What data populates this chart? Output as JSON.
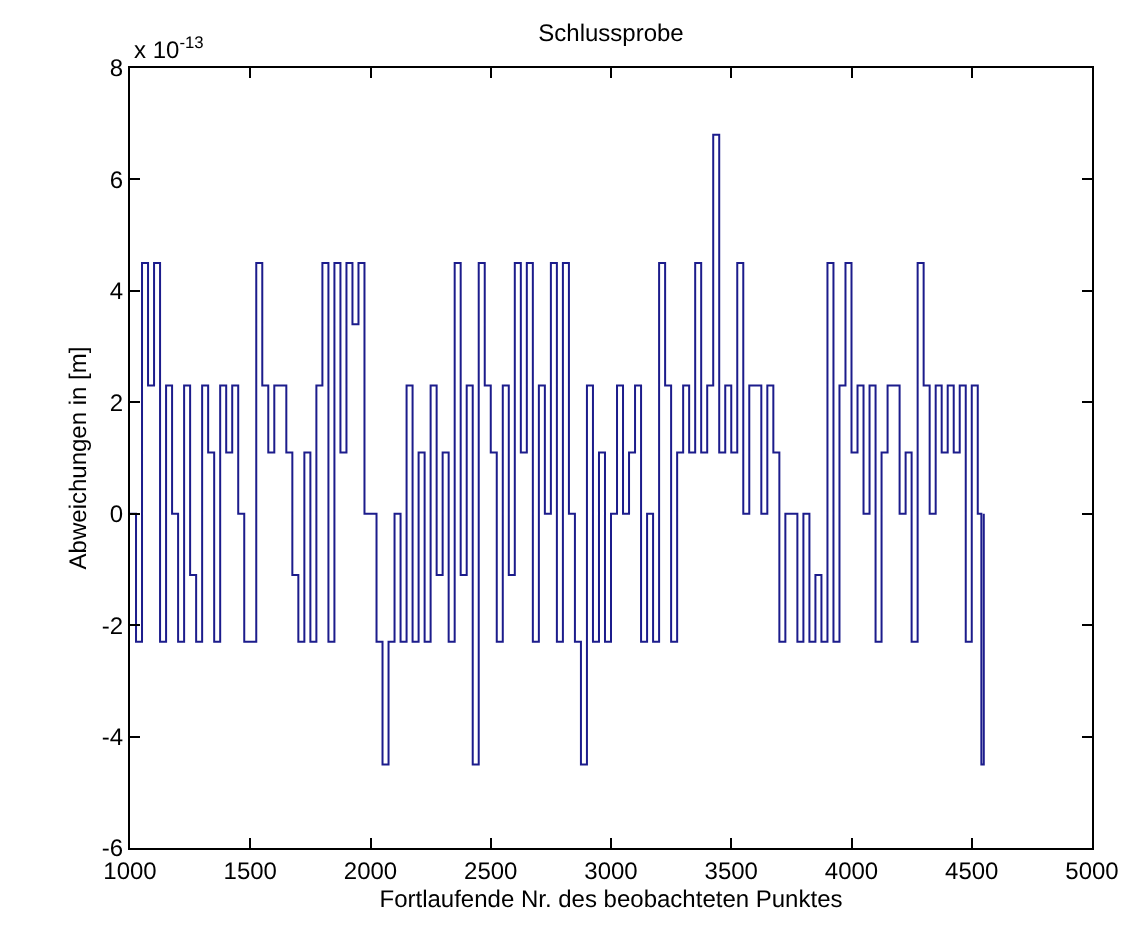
{
  "chart_data": {
    "type": "step",
    "title": "Schlussprobe",
    "xlabel": "Fortlaufende Nr. des beobachteten Punktes",
    "ylabel": "Abweichungen in [m]",
    "annotations": [
      "x 10$^{-13}$"
    ],
    "xlim": [
      1000,
      5000
    ],
    "xticks": [
      1000,
      1500,
      2000,
      2500,
      3000,
      3500,
      4000,
      4500,
      5000
    ],
    "ylim": [
      -6,
      8
    ],
    "yticks": [
      -6,
      -4,
      -2,
      0,
      2,
      4,
      6,
      8
    ],
    "series": [
      {
        "color": "#1c1c8c",
        "x": [
          1000,
          1025,
          1050,
          1075,
          1100,
          1125,
          1150,
          1175,
          1200,
          1225,
          1250,
          1275,
          1300,
          1325,
          1350,
          1375,
          1400,
          1425,
          1450,
          1475,
          1500,
          1525,
          1550,
          1575,
          1600,
          1625,
          1650,
          1675,
          1700,
          1725,
          1750,
          1775,
          1800,
          1825,
          1850,
          1875,
          1900,
          1925,
          1950,
          1975,
          2000,
          2025,
          2050,
          2075,
          2100,
          2125,
          2150,
          2175,
          2200,
          2225,
          2250,
          2275,
          2300,
          2325,
          2350,
          2375,
          2400,
          2425,
          2450,
          2475,
          2500,
          2525,
          2550,
          2575,
          2600,
          2625,
          2650,
          2675,
          2700,
          2725,
          2750,
          2775,
          2800,
          2825,
          2850,
          2875,
          2900,
          2925,
          2950,
          2975,
          3000,
          3025,
          3050,
          3075,
          3100,
          3125,
          3150,
          3175,
          3200,
          3225,
          3250,
          3275,
          3300,
          3325,
          3350,
          3375,
          3400,
          3425,
          3450,
          3475,
          3500,
          3525,
          3550,
          3575,
          3600,
          3625,
          3650,
          3675,
          3700,
          3725,
          3750,
          3775,
          3800,
          3825,
          3850,
          3875,
          3900,
          3925,
          3950,
          3975,
          4000,
          4025,
          4050,
          4075,
          4100,
          4125,
          4150,
          4175,
          4200,
          4225,
          4250,
          4275,
          4300,
          4325,
          4350,
          4375,
          4400,
          4425,
          4450,
          4475,
          4500,
          4525,
          4540,
          4550
        ],
        "values": [
          0,
          -2.3,
          4.5,
          2.3,
          4.5,
          -2.3,
          2.3,
          0,
          -2.3,
          2.3,
          -1.1,
          -2.3,
          2.3,
          1.1,
          -2.3,
          2.3,
          1.1,
          2.3,
          0,
          -2.3,
          -2.3,
          4.5,
          2.3,
          1.1,
          2.3,
          2.3,
          1.1,
          -1.1,
          -2.3,
          1.1,
          -2.3,
          2.3,
          4.5,
          -2.3,
          4.5,
          1.1,
          4.5,
          3.4,
          4.5,
          0,
          0,
          -2.3,
          -4.5,
          -2.3,
          0,
          -2.3,
          2.3,
          -2.3,
          1.1,
          -2.3,
          2.3,
          -1.1,
          1.1,
          -2.3,
          4.5,
          -1.1,
          2.3,
          -4.5,
          4.5,
          2.3,
          1.1,
          -2.3,
          2.3,
          -1.1,
          4.5,
          1.1,
          4.5,
          -2.3,
          2.3,
          0,
          4.5,
          -2.3,
          4.5,
          0,
          -2.3,
          -4.5,
          2.3,
          -2.3,
          1.1,
          -2.3,
          0,
          2.3,
          0,
          1.1,
          2.3,
          -2.3,
          0,
          -2.3,
          4.5,
          2.3,
          -2.3,
          1.1,
          2.3,
          1.1,
          4.5,
          1.1,
          2.3,
          6.8,
          1.1,
          2.3,
          1.1,
          4.5,
          0,
          2.3,
          2.3,
          0,
          2.3,
          1.1,
          -2.3,
          0,
          0,
          -2.3,
          0,
          -2.3,
          -1.1,
          -2.3,
          4.5,
          -2.3,
          2.3,
          4.5,
          1.1,
          2.3,
          0,
          2.3,
          -2.3,
          1.1,
          2.3,
          2.3,
          0,
          1.1,
          -2.3,
          4.5,
          2.3,
          0,
          2.3,
          1.1,
          2.3,
          1.1,
          2.3,
          -2.3,
          2.3,
          0,
          -4.5,
          0
        ]
      }
    ]
  }
}
